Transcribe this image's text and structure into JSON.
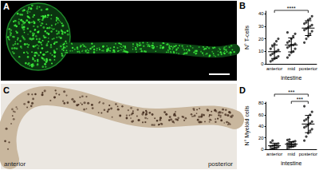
{
  "figure": {
    "panel_labels": [
      "A",
      "B",
      "C",
      "D"
    ],
    "image_c_labels": [
      "anterior",
      "posterior"
    ]
  },
  "chart_data": [
    {
      "type": "scatter",
      "categories": [
        "anterior",
        "mid",
        "posterior"
      ],
      "xlabel": "intestine",
      "ylabel": "N° T-cells",
      "ylim": [
        0,
        42
      ],
      "yticks": [
        0,
        10,
        20,
        30,
        40
      ],
      "color": "#444444",
      "values": [
        [
          2,
          3,
          4,
          5,
          6,
          7,
          8,
          9,
          10,
          11,
          12,
          14,
          16,
          18,
          20
        ],
        [
          5,
          7,
          9,
          10,
          12,
          13,
          14,
          15,
          15,
          16,
          17,
          18,
          20,
          22,
          24,
          25
        ],
        [
          17,
          20,
          22,
          24,
          26,
          27,
          28,
          29,
          30,
          31,
          32,
          33,
          35,
          36,
          38
        ]
      ],
      "mean": [
        9.7,
        15.1,
        28.5
      ],
      "sd": [
        5.4,
        5.6,
        5.9
      ],
      "annotations": [
        {
          "text": "****",
          "from": "anterior",
          "to": "posterior"
        }
      ]
    },
    {
      "type": "scatter",
      "categories": [
        "anterior",
        "mid",
        "posterior"
      ],
      "xlabel": "intestine",
      "ylabel": "N° Myeloid cells",
      "ylim": [
        0,
        82
      ],
      "yticks": [
        0,
        20,
        40,
        60,
        80
      ],
      "color": "#444444",
      "values": [
        [
          0,
          1,
          2,
          3,
          4,
          5,
          6,
          7,
          8,
          10,
          12,
          15
        ],
        [
          2,
          3,
          4,
          5,
          6,
          6,
          7,
          8,
          8,
          9,
          10,
          11,
          12,
          13,
          14,
          16,
          17
        ],
        [
          15,
          22,
          28,
          32,
          35,
          38,
          40,
          42,
          45,
          48,
          50,
          52,
          55,
          60,
          65,
          75
        ]
      ],
      "mean": [
        6.1,
        8.9,
        43.9
      ],
      "sd": [
        4.5,
        4.3,
        15
      ],
      "annotations": [
        {
          "text": "***",
          "from": "anterior",
          "to": "posterior"
        },
        {
          "text": "***",
          "from": "mid",
          "to": "posterior"
        }
      ]
    }
  ]
}
